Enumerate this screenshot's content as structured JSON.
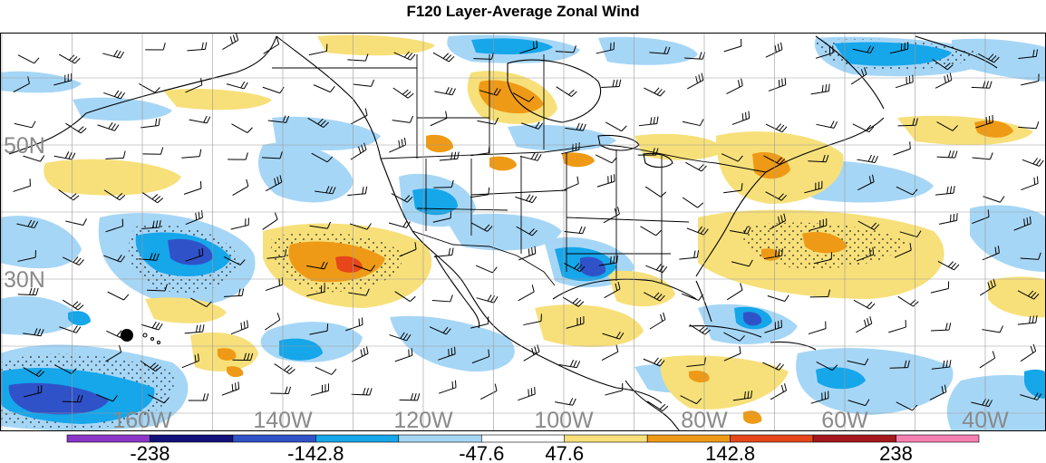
{
  "title": "F120 Layer-Average Zonal Wind",
  "lat_labels": [
    {
      "text": "50N",
      "lat": 50
    },
    {
      "text": "30N",
      "lat": 30
    }
  ],
  "lon_labels": [
    {
      "text": "160W",
      "lon": -160
    },
    {
      "text": "140W",
      "lon": -140
    },
    {
      "text": "120W",
      "lon": -120
    },
    {
      "text": "100W",
      "lon": -100
    },
    {
      "text": "80W",
      "lon": -80
    },
    {
      "text": "60W",
      "lon": -60
    },
    {
      "text": "40W",
      "lon": -40
    }
  ],
  "colorbar": {
    "colors": [
      "#8a35c8",
      "#12107a",
      "#3052c9",
      "#16a6ea",
      "#a6d6f6",
      "#ffffff",
      "#f7e07a",
      "#ef9a16",
      "#e6461a",
      "#a5171d",
      "#f67fb2"
    ],
    "tick_labels": [
      "-238",
      "-142.8",
      "-47.6",
      "47.6",
      "142.8",
      "238"
    ]
  },
  "colors": {
    "light_blue": "#a6d6f6",
    "mid_blue": "#16a6ea",
    "dark_blue": "#3052c9",
    "light_yellow": "#f7e07a",
    "orange": "#ef9a16",
    "red": "#e6461a"
  }
}
